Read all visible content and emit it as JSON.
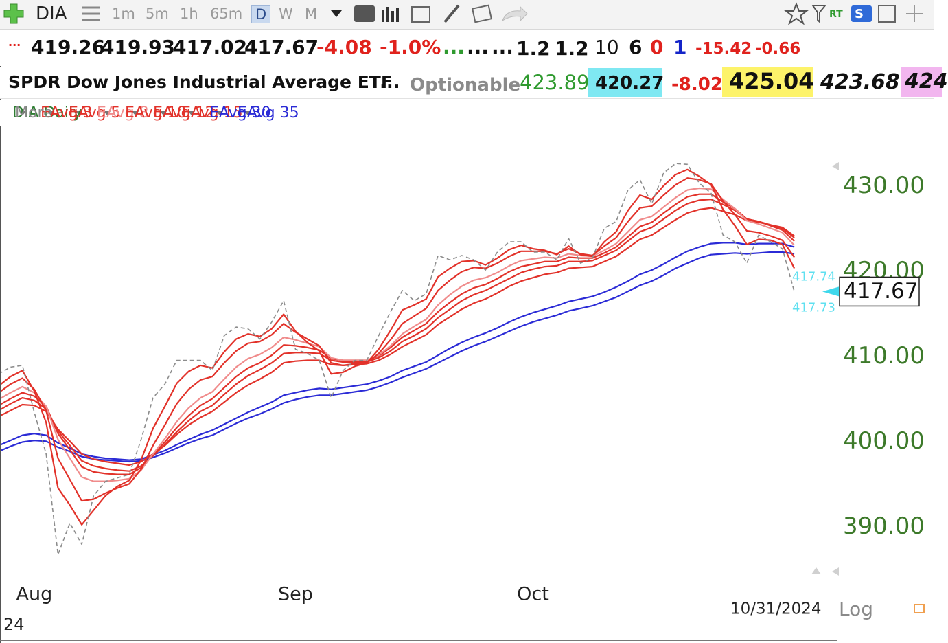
{
  "toolbar": {
    "symbol": "DIA",
    "intervals": [
      "1m",
      "5m",
      "1h",
      "65m",
      "D",
      "W",
      "M"
    ],
    "active": "D",
    "badges": [
      "RT",
      "S"
    ]
  },
  "quote": {
    "row1": [
      "...",
      419.26,
      419.93,
      417.02,
      417.67,
      -4.08,
      "-1.0%",
      "...",
      "...",
      "...",
      1.2,
      1.2,
      10,
      6,
      0,
      1,
      -15.42,
      -0.66
    ],
    "row2": [
      "SPDR Dow Jones Industrial Average ETF",
      "...",
      "Optionable",
      423.89,
      420.27,
      -8.02,
      425.04,
      423.68,
      424
    ]
  },
  "ui": {
    "more": "More",
    "log_button": "Log"
  },
  "chart_data": {
    "type": "line",
    "categories": [
      null,
      null,
      null,
      "Aug",
      null,
      null,
      null,
      null,
      null,
      null,
      null,
      null,
      null,
      null,
      null,
      null,
      null,
      null,
      null,
      null,
      null,
      null,
      null,
      null,
      null,
      "Sep",
      null,
      null,
      null,
      null,
      null,
      null,
      null,
      null,
      null,
      null,
      null,
      null,
      null,
      null,
      null,
      null,
      null,
      null,
      null,
      "Oct",
      null,
      null,
      null,
      null,
      null,
      null,
      null,
      null,
      null,
      null,
      null,
      null,
      null,
      null,
      null,
      null,
      null,
      null,
      null,
      null,
      null,
      null
    ],
    "year_label": "24",
    "date_label": "10/31/2024",
    "ylim": [
      384.8,
      436.9
    ],
    "yticks": [
      {
        "value": 390,
        "label": "390.00"
      },
      {
        "value": 400,
        "label": "400.00"
      },
      {
        "value": 410,
        "label": "410.00"
      },
      {
        "value": 420,
        "label": "420.00"
      },
      {
        "value": 430,
        "label": "430.00"
      }
    ],
    "last_price": 417.67,
    "side_labels": [
      417.74,
      417.73
    ],
    "series": [
      {
        "name": "DIA Daily",
        "color": "#8c8c8c",
        "label_color": "#2e7d32",
        "dashed": true,
        "values": [
          408.0,
          408.8,
          409.0,
          403.5,
          398.6,
          386.8,
          390.5,
          388.0,
          393.7,
          395.4,
          395.8,
          396.2,
          400.3,
          405.2,
          406.8,
          409.6,
          409.6,
          409.6,
          408.4,
          412.5,
          413.5,
          413.3,
          412.1,
          414.1,
          416.6,
          410.9,
          410.4,
          409.6,
          405.2,
          408.4,
          409.6,
          409.6,
          412.5,
          415.3,
          417.8,
          416.6,
          417.4,
          421.9,
          421.4,
          421.9,
          421.4,
          420.2,
          422.3,
          423.5,
          423.5,
          422.3,
          422.3,
          421.4,
          423.9,
          421.0,
          421.6,
          425.1,
          425.9,
          429.6,
          430.8,
          428.0,
          431.6,
          432.7,
          432.6,
          430.4,
          429.2,
          424.3,
          423.5,
          421.0,
          424.3,
          423.5,
          422.7,
          417.67
        ]
      },
      {
        "name": "EAvg 3",
        "color": "#e2322a",
        "values": [
          406.6,
          407.7,
          408.4,
          406.0,
          402.3,
          394.6,
          392.6,
          390.3,
          392.0,
          393.7,
          394.8,
          395.5,
          397.9,
          401.6,
          404.2,
          406.9,
          408.3,
          409.0,
          408.7,
          410.6,
          412.1,
          412.7,
          412.4,
          413.3,
          415.0,
          413.0,
          411.7,
          410.7,
          408.0,
          408.2,
          408.9,
          409.3,
          410.9,
          413.1,
          415.5,
          416.1,
          416.8,
          419.4,
          420.4,
          421.2,
          421.3,
          420.8,
          421.6,
          422.6,
          423.1,
          422.7,
          422.5,
          422.0,
          423.0,
          422.0,
          421.8,
          423.5,
          424.7,
          427.2,
          429.0,
          428.5,
          430.1,
          431.4,
          432.0,
          431.2,
          430.2,
          427.3,
          425.4,
          423.2,
          423.8,
          423.7,
          423.2,
          420.4
        ]
      },
      {
        "name": "EAvg 5",
        "color": "#e2322a",
        "values": [
          405.8,
          406.8,
          407.5,
          406.2,
          403.7,
          398.1,
          395.6,
          393.1,
          393.3,
          394.0,
          394.6,
          395.1,
          396.8,
          399.6,
          402.0,
          404.5,
          406.2,
          407.3,
          407.7,
          409.3,
          410.7,
          411.6,
          411.8,
          412.6,
          413.9,
          412.9,
          412.1,
          411.3,
          409.3,
          409.0,
          409.2,
          409.3,
          410.4,
          412.0,
          413.9,
          414.8,
          415.7,
          417.8,
          419.0,
          420.0,
          420.5,
          420.4,
          421.0,
          421.8,
          422.4,
          422.4,
          422.4,
          422.1,
          422.7,
          422.1,
          421.9,
          423.0,
          424.0,
          425.9,
          427.5,
          427.7,
          429.0,
          430.2,
          431.0,
          430.8,
          430.3,
          428.3,
          426.7,
          424.8,
          424.6,
          424.2,
          423.7,
          421.7
        ]
      },
      {
        "name": "EAvg 8",
        "color": "#f08c8c",
        "values": [
          405.0,
          405.8,
          406.5,
          405.8,
          404.2,
          400.3,
          398.1,
          395.9,
          395.4,
          395.4,
          395.5,
          395.7,
          396.7,
          398.6,
          400.4,
          402.4,
          404.0,
          405.2,
          405.9,
          407.4,
          408.8,
          409.8,
          410.3,
          411.1,
          412.3,
          412.0,
          411.6,
          411.2,
          409.9,
          409.6,
          409.6,
          409.6,
          410.2,
          411.3,
          412.7,
          413.6,
          414.4,
          416.1,
          417.3,
          418.3,
          419.0,
          419.3,
          419.9,
          420.7,
          421.3,
          421.5,
          421.7,
          421.6,
          422.1,
          421.9,
          421.8,
          422.5,
          423.3,
          424.7,
          426.1,
          426.5,
          427.6,
          428.7,
          429.6,
          429.8,
          429.7,
          428.5,
          427.4,
          426.0,
          425.6,
          425.1,
          424.6,
          423.1
        ]
      },
      {
        "name": "EAvg 10",
        "color": "#e2322a",
        "values": [
          404.3,
          405.1,
          405.8,
          405.4,
          404.2,
          401.0,
          399.1,
          397.1,
          396.5,
          396.3,
          396.2,
          396.2,
          397.0,
          398.5,
          400.0,
          401.7,
          403.1,
          404.3,
          405.1,
          406.4,
          407.7,
          408.7,
          409.3,
          410.2,
          411.4,
          411.3,
          411.1,
          410.8,
          409.8,
          409.6,
          409.6,
          409.6,
          410.1,
          411.1,
          412.3,
          413.1,
          413.9,
          415.3,
          416.4,
          417.4,
          418.1,
          418.5,
          419.2,
          420.0,
          420.6,
          420.9,
          421.2,
          421.2,
          421.7,
          421.6,
          421.6,
          422.2,
          422.9,
          424.1,
          425.3,
          425.8,
          426.9,
          427.9,
          428.8,
          429.1,
          429.1,
          428.2,
          427.4,
          426.2,
          425.9,
          425.4,
          424.9,
          423.6
        ]
      },
      {
        "name": "EAvg 12",
        "color": "#e2322a",
        "values": [
          403.7,
          404.5,
          405.2,
          404.9,
          403.9,
          401.3,
          399.6,
          397.8,
          397.2,
          396.9,
          396.7,
          396.6,
          397.2,
          398.4,
          399.7,
          401.2,
          402.5,
          403.6,
          404.3,
          405.6,
          406.8,
          407.8,
          408.5,
          409.3,
          410.4,
          410.5,
          410.5,
          410.4,
          409.6,
          409.4,
          409.4,
          409.4,
          409.9,
          410.7,
          411.8,
          412.5,
          413.3,
          414.6,
          415.6,
          416.6,
          417.3,
          417.8,
          418.5,
          419.2,
          419.9,
          420.3,
          420.6,
          420.7,
          421.2,
          421.2,
          421.3,
          421.9,
          422.5,
          423.6,
          424.7,
          425.2,
          426.2,
          427.2,
          428.0,
          428.4,
          428.5,
          427.9,
          427.2,
          426.2,
          425.9,
          425.5,
          425.1,
          424.0
        ]
      },
      {
        "name": "EAvg 15",
        "color": "#e2322a",
        "values": [
          403.0,
          403.7,
          404.4,
          404.3,
          403.6,
          401.5,
          400.1,
          398.6,
          398.0,
          397.7,
          397.5,
          397.3,
          397.7,
          398.6,
          399.6,
          400.9,
          402.0,
          402.9,
          403.6,
          404.7,
          405.8,
          406.7,
          407.4,
          408.2,
          409.3,
          409.5,
          409.6,
          409.6,
          409.1,
          409.0,
          409.1,
          409.2,
          409.6,
          410.3,
          411.2,
          411.9,
          412.6,
          413.8,
          414.7,
          415.6,
          416.3,
          416.8,
          417.5,
          418.3,
          418.9,
          419.3,
          419.7,
          419.9,
          420.4,
          420.5,
          420.6,
          421.2,
          421.8,
          422.8,
          423.8,
          424.3,
          425.2,
          426.1,
          426.9,
          427.3,
          427.5,
          427.1,
          426.7,
          426.0,
          425.8,
          425.5,
          425.2,
          424.2
        ]
      },
      {
        "name": "EAvg 30",
        "color": "#2b2bd6",
        "values": [
          399.6,
          400.2,
          400.8,
          401.0,
          400.8,
          399.9,
          399.3,
          398.6,
          398.3,
          398.1,
          398.0,
          397.9,
          398.0,
          398.5,
          399.0,
          399.7,
          400.3,
          400.9,
          401.4,
          402.1,
          402.8,
          403.5,
          404.1,
          404.7,
          405.5,
          405.8,
          406.1,
          406.3,
          406.2,
          406.4,
          406.6,
          406.8,
          407.2,
          407.7,
          408.4,
          408.9,
          409.4,
          410.2,
          411.0,
          411.7,
          412.3,
          412.8,
          413.4,
          414.1,
          414.7,
          415.2,
          415.6,
          416.0,
          416.5,
          416.8,
          417.1,
          417.6,
          418.2,
          418.9,
          419.7,
          420.2,
          420.9,
          421.7,
          422.4,
          422.9,
          423.3,
          423.4,
          423.4,
          423.2,
          423.3,
          423.3,
          423.3,
          422.9
        ]
      },
      {
        "name": "EAvg 35",
        "color": "#2b2bd6",
        "values": [
          398.9,
          399.5,
          400.0,
          400.2,
          400.1,
          399.4,
          398.9,
          398.3,
          398.0,
          397.9,
          397.8,
          397.7,
          397.8,
          398.2,
          398.7,
          399.3,
          399.9,
          400.4,
          400.8,
          401.5,
          402.2,
          402.8,
          403.3,
          403.9,
          404.6,
          405.0,
          405.3,
          405.5,
          405.5,
          405.7,
          405.9,
          406.1,
          406.5,
          407.0,
          407.6,
          408.1,
          408.6,
          409.3,
          410.0,
          410.7,
          411.3,
          411.8,
          412.4,
          413.0,
          413.6,
          414.1,
          414.5,
          414.9,
          415.4,
          415.7,
          416.0,
          416.5,
          417.0,
          417.7,
          418.4,
          418.9,
          419.6,
          420.4,
          421.0,
          421.6,
          422.0,
          422.1,
          422.2,
          422.1,
          422.2,
          422.3,
          422.3,
          422.1
        ]
      }
    ]
  }
}
